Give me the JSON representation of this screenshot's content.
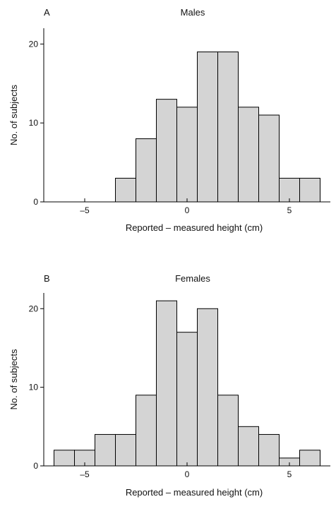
{
  "chart_data": [
    {
      "type": "bar",
      "panel_label": "A",
      "title": "Males",
      "xlabel": "Reported – measured height (cm)",
      "ylabel": "No. of subjects",
      "bin_width": 1,
      "xlim": [
        -7,
        7
      ],
      "ylim": [
        0,
        22
      ],
      "x_ticks": [
        -5,
        0,
        5
      ],
      "x_tick_labels": [
        "–5",
        "0",
        "5"
      ],
      "y_ticks": [
        0,
        10,
        20
      ],
      "y_tick_labels": [
        "0",
        "10",
        "20"
      ],
      "bins": [
        {
          "center": -3,
          "count": 3
        },
        {
          "center": -2,
          "count": 8
        },
        {
          "center": -1,
          "count": 13
        },
        {
          "center": 0,
          "count": 12
        },
        {
          "center": 1,
          "count": 19
        },
        {
          "center": 2,
          "count": 19
        },
        {
          "center": 3,
          "count": 12
        },
        {
          "center": 4,
          "count": 11
        },
        {
          "center": 5,
          "count": 3
        },
        {
          "center": 6,
          "count": 3
        }
      ],
      "bar_color": "#d4d4d4"
    },
    {
      "type": "bar",
      "panel_label": "B",
      "title": "Females",
      "xlabel": "Reported – measured height (cm)",
      "ylabel": "No. of subjects",
      "bin_width": 1,
      "xlim": [
        -7,
        7
      ],
      "ylim": [
        0,
        22
      ],
      "x_ticks": [
        -5,
        0,
        5
      ],
      "x_tick_labels": [
        "–5",
        "0",
        "5"
      ],
      "y_ticks": [
        0,
        10,
        20
      ],
      "y_tick_labels": [
        "0",
        "10",
        "20"
      ],
      "bins": [
        {
          "center": -6,
          "count": 2
        },
        {
          "center": -5,
          "count": 2
        },
        {
          "center": -4,
          "count": 4
        },
        {
          "center": -3,
          "count": 4
        },
        {
          "center": -2,
          "count": 9
        },
        {
          "center": -1,
          "count": 21
        },
        {
          "center": 0,
          "count": 17
        },
        {
          "center": 1,
          "count": 20
        },
        {
          "center": 2,
          "count": 9
        },
        {
          "center": 3,
          "count": 5
        },
        {
          "center": 4,
          "count": 4
        },
        {
          "center": 5,
          "count": 1
        },
        {
          "center": 6,
          "count": 2
        }
      ],
      "bar_color": "#d4d4d4"
    }
  ]
}
